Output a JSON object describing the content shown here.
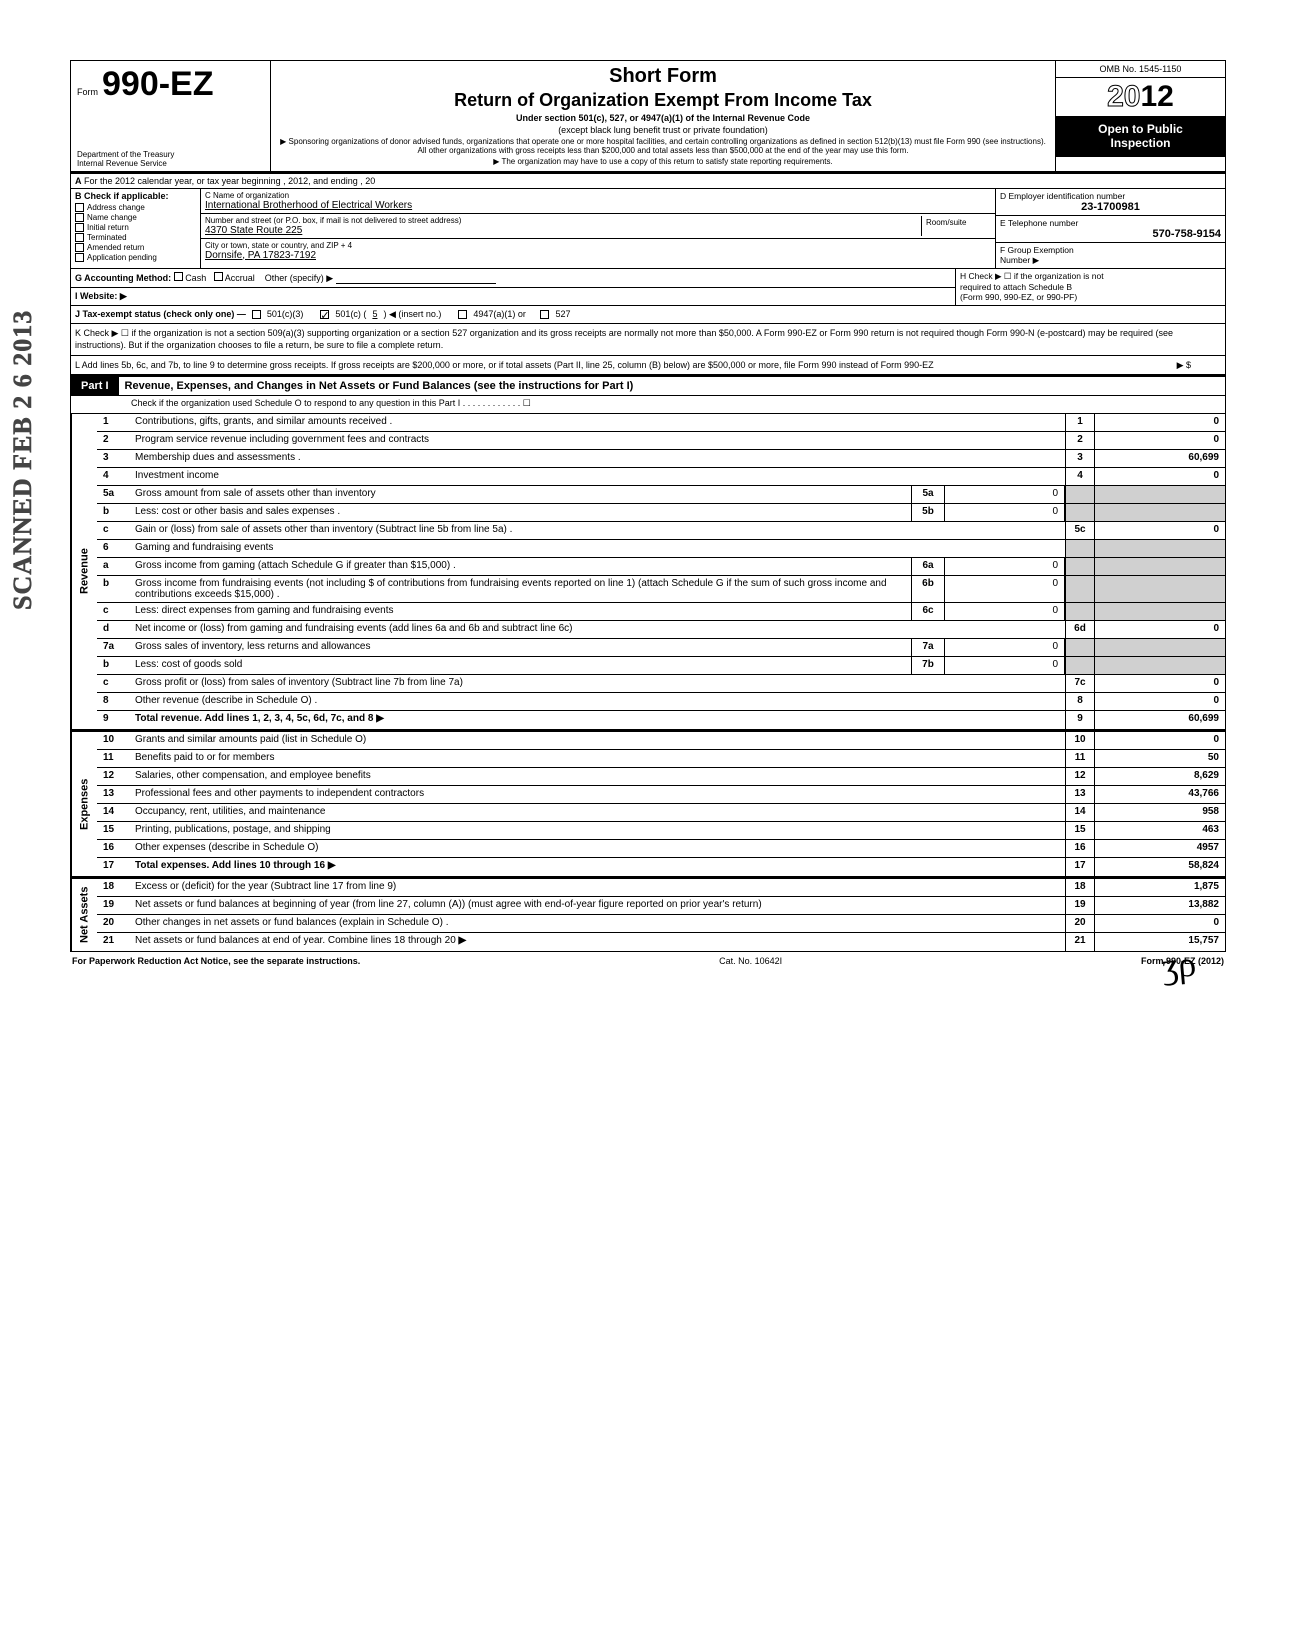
{
  "header": {
    "form_small": "Form",
    "form_number": "990-EZ",
    "dept1": "Department of the Treasury",
    "dept2": "Internal Revenue Service",
    "title1": "Short Form",
    "title2": "Return of Organization Exempt From Income Tax",
    "sub": "Under section 501(c), 527, or 4947(a)(1) of the Internal Revenue Code",
    "sub2": "(except black lung benefit trust or private foundation)",
    "fine1": "▶ Sponsoring organizations of donor advised funds, organizations that operate one or more hospital facilities, and certain controlling organizations as defined in section 512(b)(13) must file Form 990 (see instructions). All other organizations with gross receipts less than $200,000 and total assets less than $500,000 at the end of the year may use this form.",
    "fine2": "▶ The organization may have to use a copy of this return to satisfy state reporting requirements.",
    "omb": "OMB No. 1545-1150",
    "year_prefix": "20",
    "year_suffix": "12",
    "open1": "Open to Public",
    "open2": "Inspection"
  },
  "lineA": "For the 2012 calendar year, or tax year beginning                                                    , 2012, and ending                                          , 20",
  "B": {
    "title": "Check if applicable:",
    "items": [
      "Address change",
      "Name change",
      "Initial return",
      "Terminated",
      "Amended return",
      "Application pending"
    ]
  },
  "C": {
    "label_name": "C  Name of organization",
    "name": "International Brotherhood of Electrical Workers",
    "label_addr": "Number and street (or P.O. box, if mail is not delivered to street address)",
    "addr": "4370 State Route 225",
    "label_city": "City or town, state or country, and ZIP + 4",
    "city": "Dornsife, PA 17823-7192",
    "room_label": "Room/suite"
  },
  "D": {
    "label": "D Employer identification number",
    "ein": "23-1700981",
    "E_label": "E Telephone number",
    "phone": "570-758-9154",
    "F_label": "F Group Exemption",
    "F_label2": "Number ▶"
  },
  "G": {
    "label": "G  Accounting Method:",
    "cash": "Cash",
    "accrual": "Accrual",
    "other": "Other (specify) ▶"
  },
  "I": {
    "label": "I   Website: ▶"
  },
  "H": {
    "line1": "H  Check ▶ ☐ if the organization is not",
    "line2": "required to attach Schedule B",
    "line3": "(Form 990, 990-EZ, or 990-PF)"
  },
  "J": {
    "label": "J  Tax-exempt status (check only one) —",
    "c3": "501(c)(3)",
    "c": "501(c) (",
    "c_no": "5",
    "c_after": ") ◀ (insert no.)",
    "a1": "4947(a)(1) or",
    "s527": "527"
  },
  "K": "K  Check ▶  ☐   if the organization is not a section 509(a)(3) supporting organization or a section 527 organization and its gross receipts are normally not more than $50,000. A Form 990-EZ or Form 990 return is not required though Form 990-N (e-postcard) may be required (see instructions). But if the organization chooses to file a return, be sure to file a complete return.",
  "L": "L  Add lines 5b, 6c, and 7b, to line 9 to determine gross receipts. If gross receipts are $200,000 or more, or if total assets (Part II, line 25, column (B) below) are $500,000 or more, file Form 990 instead of Form 990-EZ",
  "L_amt": "▶  $",
  "part1": {
    "tag": "Part I",
    "title": "Revenue, Expenses, and Changes in Net Assets or Fund Balances (see the instructions for Part I)",
    "sub": "Check if the organization used Schedule O to respond to any question in this Part I  .   .   .   .   .   .   .   .   .   .   .   .   ☐"
  },
  "sections": {
    "revenue": "Revenue",
    "expenses": "Expenses",
    "netassets": "Net Assets"
  },
  "lines": {
    "1": {
      "d": "Contributions, gifts, grants, and similar amounts received .",
      "a": "0"
    },
    "2": {
      "d": "Program service revenue including government fees and contracts",
      "a": "0"
    },
    "3": {
      "d": "Membership dues and assessments .",
      "a": "60,699"
    },
    "4": {
      "d": "Investment income",
      "a": "0"
    },
    "5a": {
      "d": "Gross amount from sale of assets other than inventory",
      "m": "0"
    },
    "5b": {
      "d": "Less: cost or other basis and sales expenses .",
      "m": "0"
    },
    "5c": {
      "d": "Gain or (loss) from sale of assets other than inventory (Subtract line 5b from line 5a) .",
      "a": "0"
    },
    "6": {
      "d": "Gaming and fundraising events"
    },
    "6a": {
      "d": "Gross income from gaming (attach Schedule G if greater than $15,000) .",
      "m": "0"
    },
    "6b": {
      "d": "Gross income from fundraising events (not including  $                     of contributions from fundraising events reported on line 1) (attach Schedule G if the sum of such gross income and contributions exceeds $15,000) .",
      "m": "0"
    },
    "6c": {
      "d": "Less: direct expenses from gaming and fundraising events",
      "m": "0"
    },
    "6d": {
      "d": "Net income or (loss) from gaming and fundraising events (add lines 6a and 6b and subtract line 6c)",
      "a": "0"
    },
    "7a": {
      "d": "Gross sales of inventory, less returns and allowances",
      "m": "0"
    },
    "7b": {
      "d": "Less: cost of goods sold",
      "m": "0"
    },
    "7c": {
      "d": "Gross profit or (loss) from sales of inventory (Subtract line 7b from line 7a)",
      "a": "0"
    },
    "8": {
      "d": "Other revenue (describe in Schedule O) .",
      "a": "0"
    },
    "9": {
      "d": "Total revenue. Add lines 1, 2, 3, 4, 5c, 6d, 7c, and 8",
      "a": "60,699"
    },
    "10": {
      "d": "Grants and similar amounts paid (list in Schedule O)",
      "a": "0"
    },
    "11": {
      "d": "Benefits paid to or for members",
      "a": "50"
    },
    "12": {
      "d": "Salaries, other compensation, and employee benefits",
      "a": "8,629"
    },
    "13": {
      "d": "Professional fees and other payments to independent contractors",
      "a": "43,766"
    },
    "14": {
      "d": "Occupancy, rent, utilities, and maintenance",
      "a": "958"
    },
    "15": {
      "d": "Printing, publications, postage, and shipping",
      "a": "463"
    },
    "16": {
      "d": "Other expenses (describe in Schedule O)",
      "a": "4957"
    },
    "17": {
      "d": "Total expenses. Add lines 10 through 16",
      "a": "58,824"
    },
    "18": {
      "d": "Excess or (deficit) for the year (Subtract line 17 from line 9)",
      "a": "1,875"
    },
    "19": {
      "d": "Net assets or fund balances at beginning of year (from line 27, column (A)) (must agree with end-of-year figure reported on prior year's return)",
      "a": "13,882"
    },
    "20": {
      "d": "Other changes in net assets or fund balances (explain in Schedule O) .",
      "a": "0"
    },
    "21": {
      "d": "Net assets or fund balances at end of year. Combine lines 18 through 20",
      "a": "15,757"
    }
  },
  "footer": {
    "left": "For Paperwork Reduction Act Notice, see the separate instructions.",
    "mid": "Cat. No. 10642I",
    "right": "Form 990-EZ (2012)"
  },
  "stamp": "SCANNED FEB 2 6 2013",
  "sig": "ʒρ"
}
